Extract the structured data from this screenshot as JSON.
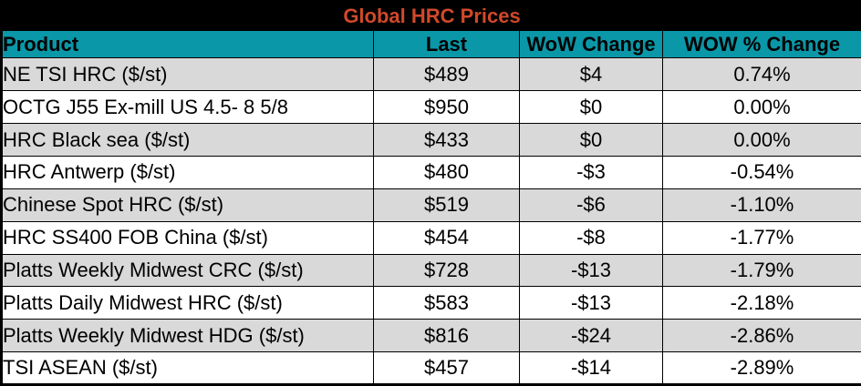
{
  "title": "Global HRC Prices",
  "colors": {
    "title_bg": "#000000",
    "title_text": "#D0492A",
    "header_bg": "#0A97A8",
    "header_text": "#000000",
    "row_odd_bg": "#D9D9D9",
    "row_even_bg": "#FFFFFF",
    "border": "#000000",
    "cell_text": "#000000"
  },
  "table": {
    "columns": [
      "Product",
      "Last",
      "WoW Change",
      "WOW % Change"
    ],
    "rows": [
      {
        "product": "NE TSI HRC ($/st)",
        "last": "$489",
        "wow_change": "$4",
        "wow_pct_change": "0.74%"
      },
      {
        "product": "OCTG J55 Ex-mill US 4.5- 8 5/8",
        "last": "$950",
        "wow_change": "$0",
        "wow_pct_change": "0.00%"
      },
      {
        "product": "HRC Black sea ($/st)",
        "last": "$433",
        "wow_change": "$0",
        "wow_pct_change": "0.00%"
      },
      {
        "product": "HRC Antwerp ($/st)",
        "last": "$480",
        "wow_change": "-$3",
        "wow_pct_change": "-0.54%"
      },
      {
        "product": "Chinese Spot HRC ($/st)",
        "last": "$519",
        "wow_change": "-$6",
        "wow_pct_change": "-1.10%"
      },
      {
        "product": "HRC SS400 FOB China ($/st)",
        "last": "$454",
        "wow_change": "-$8",
        "wow_pct_change": "-1.77%"
      },
      {
        "product": "Platts Weekly Midwest CRC ($/st)",
        "last": "$728",
        "wow_change": "-$13",
        "wow_pct_change": "-1.79%"
      },
      {
        "product": "Platts Daily Midwest HRC ($/st)",
        "last": "$583",
        "wow_change": "-$13",
        "wow_pct_change": "-2.18%"
      },
      {
        "product": "Platts Weekly Midwest HDG ($/st)",
        "last": "$816",
        "wow_change": "-$24",
        "wow_pct_change": "-2.86%"
      },
      {
        "product": "TSI ASEAN ($/st)",
        "last": "$457",
        "wow_change": "-$14",
        "wow_pct_change": "-2.89%"
      }
    ]
  },
  "chart_data": {
    "type": "table",
    "title": "Global HRC Prices",
    "columns": [
      "Product",
      "Last",
      "WoW Change",
      "WOW % Change"
    ],
    "rows": [
      [
        "NE TSI HRC ($/st)",
        489,
        4,
        0.74
      ],
      [
        "OCTG J55 Ex-mill US 4.5- 8 5/8",
        950,
        0,
        0.0
      ],
      [
        "HRC Black sea ($/st)",
        433,
        0,
        0.0
      ],
      [
        "HRC Antwerp ($/st)",
        480,
        -3,
        -0.54
      ],
      [
        "Chinese Spot HRC ($/st)",
        519,
        -6,
        -1.1
      ],
      [
        "HRC SS400 FOB China ($/st)",
        454,
        -8,
        -1.77
      ],
      [
        "Platts Weekly Midwest CRC ($/st)",
        728,
        -13,
        -1.79
      ],
      [
        "Platts Daily Midwest HRC ($/st)",
        583,
        -13,
        -2.18
      ],
      [
        "Platts Weekly Midwest HDG ($/st)",
        816,
        -24,
        -2.86
      ],
      [
        "TSI ASEAN ($/st)",
        457,
        -14,
        -2.89
      ]
    ],
    "units": {
      "last": "USD/st",
      "wow_change": "USD",
      "wow_pct_change": "%"
    },
    "layout": {
      "alternating_rows": true,
      "grid": true
    }
  }
}
